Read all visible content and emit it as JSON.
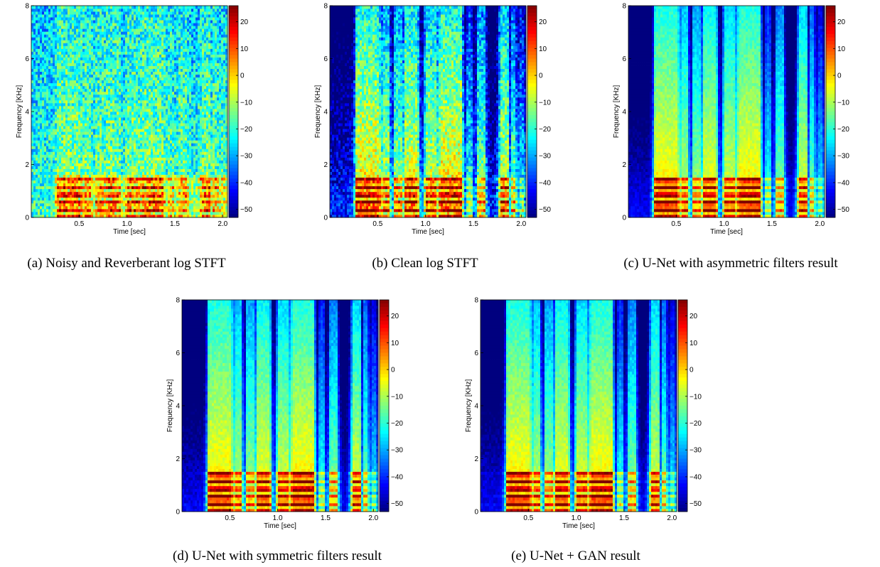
{
  "chart_data": [
    {
      "type": "heatmap",
      "panel": "a",
      "caption": "(a) Noisy and Reverberant log STFT",
      "xlabel": "Time [sec]",
      "ylabel": "Frequency [KHz]",
      "xlim": [
        0,
        2.05
      ],
      "ylim": [
        0,
        8
      ],
      "xticks": [
        "0.5",
        "1.0",
        "1.5",
        "2.0"
      ],
      "yticks": [
        "0",
        "2",
        "4",
        "6",
        "8"
      ],
      "colorbar": {
        "range": [
          -53,
          26
        ],
        "ticks": [
          "20",
          "10",
          "0",
          "−10",
          "−20",
          "−30",
          "−40",
          "−50"
        ]
      },
      "style": "noisy"
    },
    {
      "type": "heatmap",
      "panel": "b",
      "caption": "(b) Clean log STFT",
      "xlabel": "Time [sec]",
      "ylabel": "Frequency [KHz]",
      "xlim": [
        0,
        2.05
      ],
      "ylim": [
        0,
        8
      ],
      "xticks": [
        "0.5",
        "1.0",
        "1.5",
        "2.0"
      ],
      "yticks": [
        "0",
        "2",
        "4",
        "6",
        "8"
      ],
      "colorbar": {
        "range": [
          -53,
          26
        ],
        "ticks": [
          "20",
          "10",
          "0",
          "−10",
          "−20",
          "−30",
          "−40",
          "−50"
        ]
      },
      "style": "clean"
    },
    {
      "type": "heatmap",
      "panel": "c",
      "caption": "(c) U-Net with asymmetric filters result",
      "xlabel": "Time [sec]",
      "ylabel": "Frequency [KHz]",
      "xlim": [
        0,
        2.05
      ],
      "ylim": [
        0,
        8
      ],
      "xticks": [
        "0.5",
        "1.0",
        "1.5",
        "2.0"
      ],
      "yticks": [
        "0",
        "2",
        "4",
        "6",
        "8"
      ],
      "colorbar": {
        "range": [
          -53,
          26
        ],
        "ticks": [
          "20",
          "10",
          "0",
          "−10",
          "−20",
          "−30",
          "−40",
          "−50"
        ]
      },
      "style": "smooth"
    },
    {
      "type": "heatmap",
      "panel": "d",
      "caption": "(d) U-Net with symmetric filters result",
      "xlabel": "Time [sec]",
      "ylabel": "Frequency [KHz]",
      "xlim": [
        0,
        2.05
      ],
      "ylim": [
        0,
        8
      ],
      "xticks": [
        "0.5",
        "1.0",
        "1.5",
        "2.0"
      ],
      "yticks": [
        "0",
        "2",
        "4",
        "6",
        "8"
      ],
      "colorbar": {
        "range": [
          -53,
          26
        ],
        "ticks": [
          "20",
          "10",
          "0",
          "−10",
          "−20",
          "−30",
          "−40",
          "−50"
        ]
      },
      "style": "smooth"
    },
    {
      "type": "heatmap",
      "panel": "e",
      "caption": "(e) U-Net + GAN result",
      "xlabel": "Time [sec]",
      "ylabel": "Frequency [KHz]",
      "xlim": [
        0,
        2.05
      ],
      "ylim": [
        0,
        8
      ],
      "xticks": [
        "0.5",
        "1.0",
        "1.5",
        "2.0"
      ],
      "yticks": [
        "0",
        "2",
        "4",
        "6",
        "8"
      ],
      "colorbar": {
        "range": [
          -53,
          26
        ],
        "ticks": [
          "20",
          "10",
          "0",
          "−10",
          "−20",
          "−30",
          "−40",
          "−50"
        ]
      },
      "style": "smooth"
    }
  ],
  "colormap": [
    "#00007f",
    "#0000ff",
    "#0080ff",
    "#00ffff",
    "#80ff80",
    "#ffff00",
    "#ff8000",
    "#ff0000",
    "#7f0000"
  ]
}
